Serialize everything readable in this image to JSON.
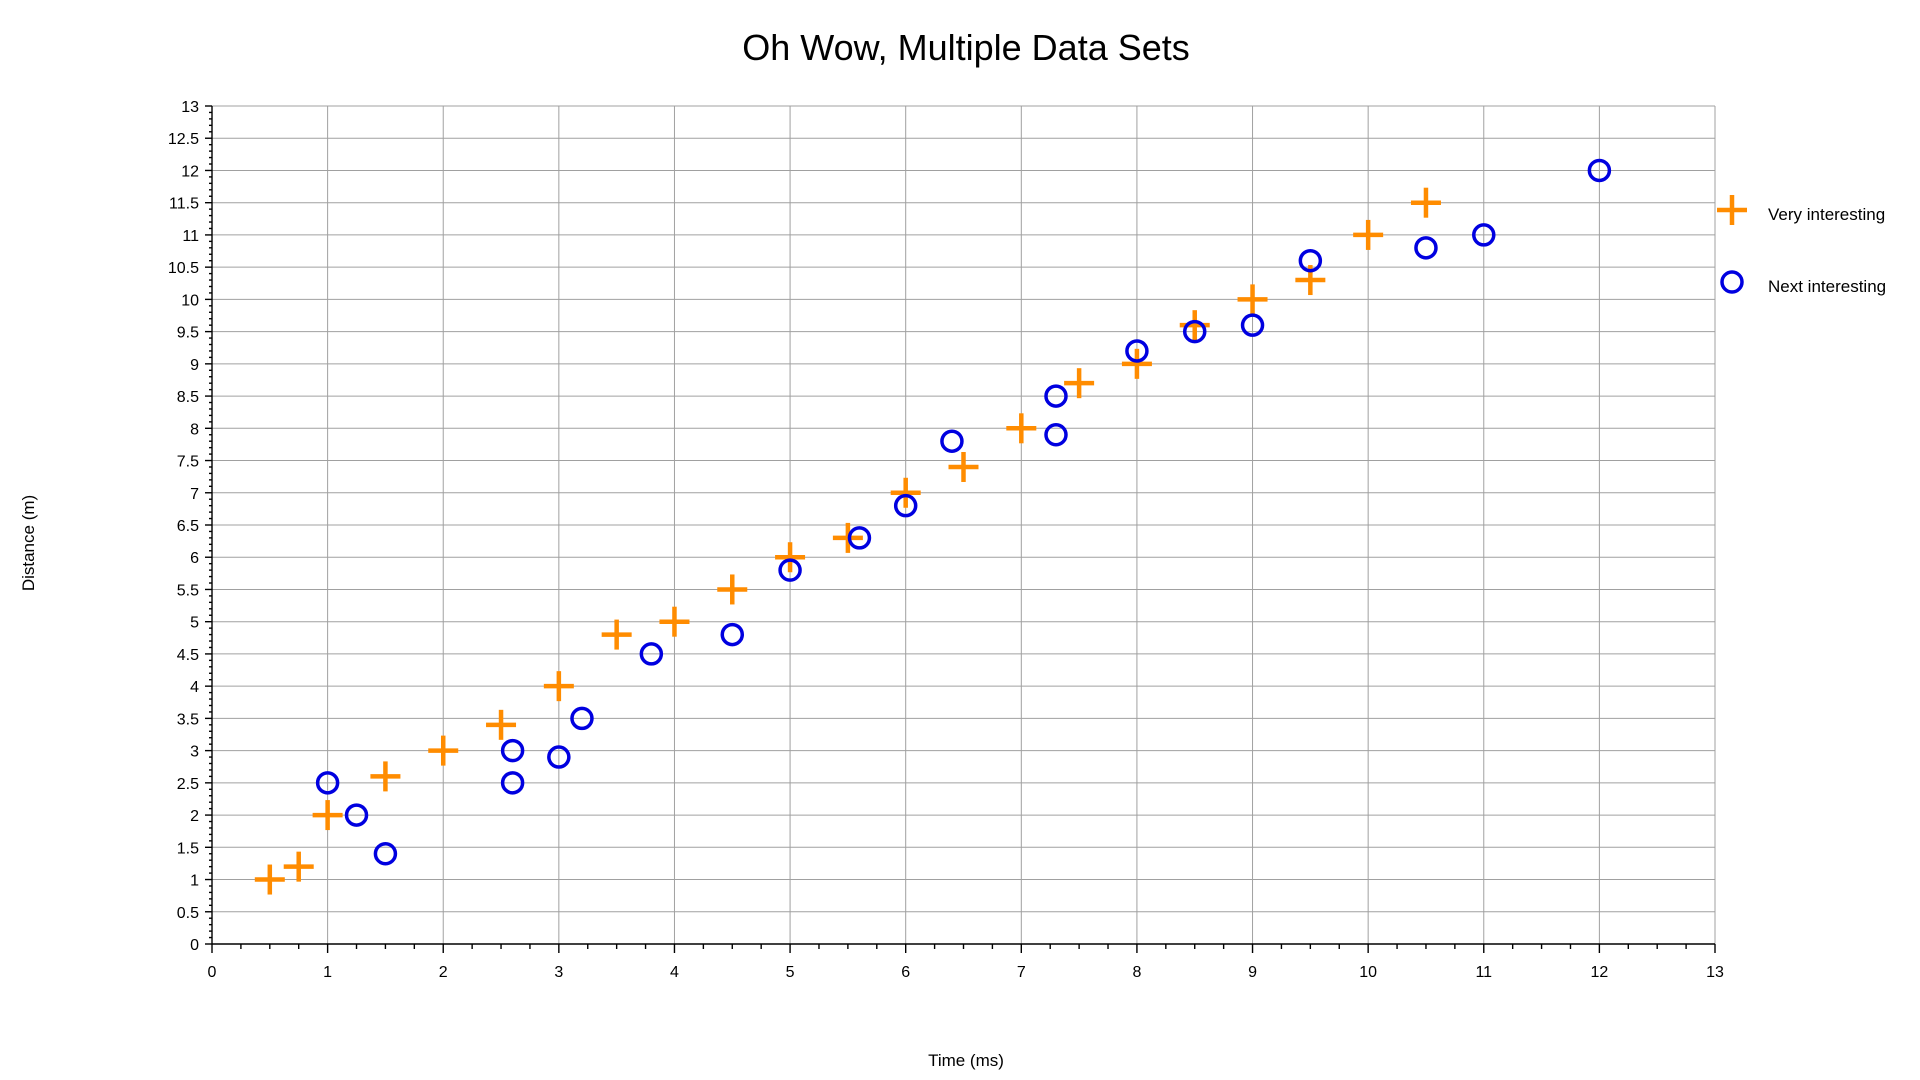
{
  "chart_data": {
    "type": "scatter",
    "title": "Oh Wow, Multiple Data Sets",
    "xlabel": "Time (ms)",
    "ylabel": "Distance (m)",
    "xlim": [
      0,
      13
    ],
    "ylim": [
      0,
      13
    ],
    "x_ticks": [
      0,
      1,
      2,
      3,
      4,
      5,
      6,
      7,
      8,
      9,
      10,
      11,
      12,
      13
    ],
    "y_ticks": [
      0,
      0.5,
      1,
      1.5,
      2,
      2.5,
      3,
      3.5,
      4,
      4.5,
      5,
      5.5,
      6,
      6.5,
      7,
      7.5,
      8,
      8.5,
      9,
      9.5,
      10,
      10.5,
      11,
      11.5,
      12,
      12.5,
      13
    ],
    "grid": true,
    "legend_position": "right",
    "series": [
      {
        "name": "Very interesting",
        "marker": "plus",
        "color": "#ff8c00",
        "points": [
          [
            0.5,
            1.0
          ],
          [
            0.75,
            1.2
          ],
          [
            1.0,
            2.0
          ],
          [
            1.5,
            2.6
          ],
          [
            2.0,
            3.0
          ],
          [
            2.5,
            3.4
          ],
          [
            3.0,
            4.0
          ],
          [
            3.5,
            4.8
          ],
          [
            4.0,
            5.0
          ],
          [
            4.5,
            5.5
          ],
          [
            5.0,
            6.0
          ],
          [
            5.5,
            6.3
          ],
          [
            6.0,
            7.0
          ],
          [
            6.5,
            7.4
          ],
          [
            7.0,
            8.0
          ],
          [
            7.5,
            8.7
          ],
          [
            8.0,
            9.0
          ],
          [
            8.5,
            9.6
          ],
          [
            9.0,
            10.0
          ],
          [
            9.5,
            10.3
          ],
          [
            10.0,
            11.0
          ],
          [
            10.5,
            11.5
          ]
        ]
      },
      {
        "name": "Next interesting",
        "marker": "circle",
        "color": "#0000e0",
        "points": [
          [
            1.0,
            2.5
          ],
          [
            1.25,
            2.0
          ],
          [
            1.5,
            1.4
          ],
          [
            2.6,
            3.0
          ],
          [
            2.6,
            2.5
          ],
          [
            3.0,
            2.9
          ],
          [
            3.2,
            3.5
          ],
          [
            3.8,
            4.5
          ],
          [
            4.5,
            4.8
          ],
          [
            5.0,
            5.8
          ],
          [
            5.6,
            6.3
          ],
          [
            6.0,
            6.8
          ],
          [
            6.4,
            7.8
          ],
          [
            7.3,
            8.5
          ],
          [
            7.3,
            7.9
          ],
          [
            8.0,
            9.2
          ],
          [
            8.5,
            9.5
          ],
          [
            9.0,
            9.6
          ],
          [
            9.5,
            10.6
          ],
          [
            10.5,
            10.8
          ],
          [
            11.0,
            11.0
          ],
          [
            12.0,
            12.0
          ]
        ]
      }
    ]
  }
}
